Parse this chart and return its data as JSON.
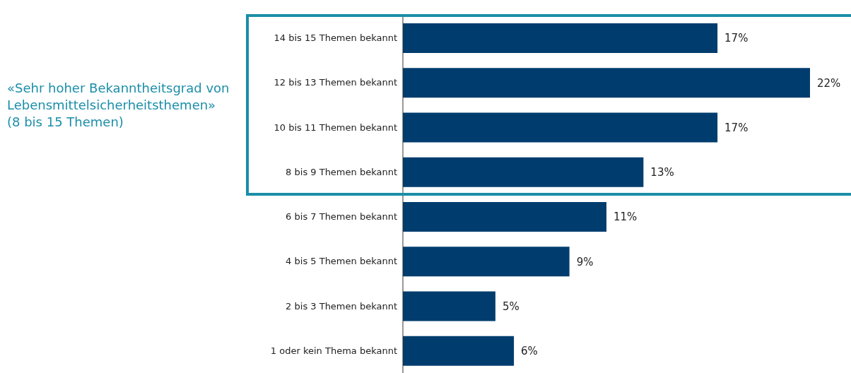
{
  "chart_data": {
    "type": "bar",
    "orientation": "horizontal",
    "categories": [
      "14 bis 15 Themen bekannt",
      "12 bis 13 Themen bekannt",
      "10 bis 11 Themen bekannt",
      "8 bis 9 Themen bekannt",
      "6 bis 7 Themen bekannt",
      "4 bis 5 Themen bekannt",
      "2 bis 3 Themen bekannt",
      "1 oder kein Thema bekannt"
    ],
    "values": [
      17,
      22,
      17,
      13,
      11,
      9,
      5,
      6
    ],
    "value_labels": [
      "17%",
      "22%",
      "17%",
      "13%",
      "11%",
      "9%",
      "5%",
      "6%"
    ],
    "color": "#003d6e",
    "annotations": [
      "«Sehr hoher Bekanntheitsgrad von\nLebensmittelsicherheitsthemen»\n(8 bis 15 Themen)"
    ]
  }
}
